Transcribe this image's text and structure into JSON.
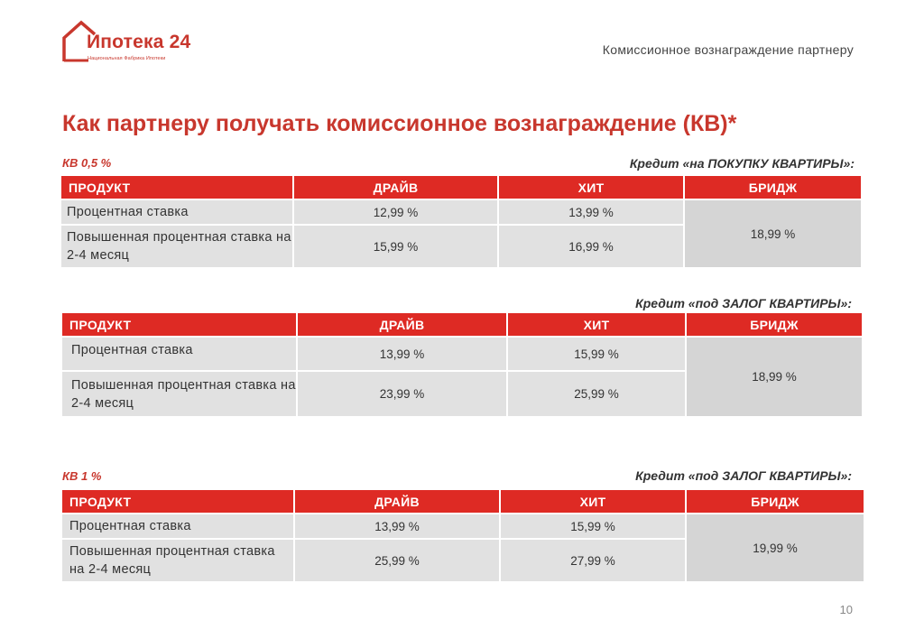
{
  "logo": {
    "name": "Ипотека 24",
    "subtitle": "Национальная Фабрика Ипотеки",
    "brand_color": "#c8372d"
  },
  "header": {
    "title": "Комиссионное вознаграждение партнеру"
  },
  "main_title": "Как партнеру получать комиссионное вознаграждение (КВ)*",
  "sections": [
    {
      "kv_label": "КВ 0,5 %",
      "credit_label": "Кредит «на ПОКУПКУ КВАРТИРЫ»:",
      "headers": [
        "ПРОДУКТ",
        "ДРАЙВ",
        "ХИТ",
        "БРИДЖ"
      ],
      "rows": [
        {
          "label": "Процентная ставка",
          "drive": "12,99 %",
          "hit": "13,99 %"
        },
        {
          "label": "Повышенная процентная ставка на 2-4 месяц",
          "drive": "15,99 %",
          "hit": "16,99 %"
        }
      ],
      "bridge": "18,99 %"
    },
    {
      "kv_label": "",
      "credit_label": "Кредит «под ЗАЛОГ КВАРТИРЫ»:",
      "headers": [
        "ПРОДУКТ",
        "ДРАЙВ",
        "ХИТ",
        "БРИДЖ"
      ],
      "rows": [
        {
          "label": "Процентная ставка",
          "drive": "13,99 %",
          "hit": "15,99 %"
        },
        {
          "label": "Повышенная процентная ставка на 2-4 месяц",
          "drive": "23,99 %",
          "hit": "25,99 %"
        }
      ],
      "bridge": "18,99 %"
    },
    {
      "kv_label": "КВ 1 %",
      "credit_label": "Кредит «под ЗАЛОГ КВАРТИРЫ»:",
      "headers": [
        "ПРОДУКТ",
        "ДРАЙВ",
        "ХИТ",
        "БРИДЖ"
      ],
      "rows": [
        {
          "label": "Процентная ставка",
          "drive": "13,99 %",
          "hit": "15,99 %"
        },
        {
          "label": "Повышенная процентная ставка на 2-4 месяц",
          "drive": "25,99 %",
          "hit": "27,99 %"
        }
      ],
      "bridge": "19,99 %"
    }
  ],
  "page_number": "10"
}
